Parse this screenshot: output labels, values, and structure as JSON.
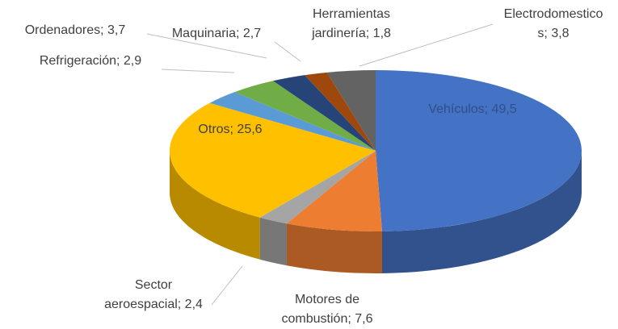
{
  "chart_data": {
    "type": "pie3d",
    "values": [
      49.5,
      7.6,
      2.4,
      25.6,
      2.9,
      3.7,
      2.7,
      1.8,
      3.8
    ],
    "value_labels": [
      "Vehículos; 49,5",
      "Motores de\ncombustión; 7,6",
      "Sector\naeroespacial; 2,4",
      "Otros; 25,6",
      "Refrigeración; 2,9",
      "Ordenadores; 3,7",
      "Maquinaria; 2,7",
      "Herramientas\njardinería; 1,8",
      "Electrodomestico\ns; 3,8"
    ],
    "colors": [
      "#4472c4",
      "#ed7d31",
      "#a5a5a5",
      "#ffc000",
      "#5b9bd5",
      "#70ad47",
      "#264478",
      "#9e480e",
      "#636363"
    ]
  }
}
